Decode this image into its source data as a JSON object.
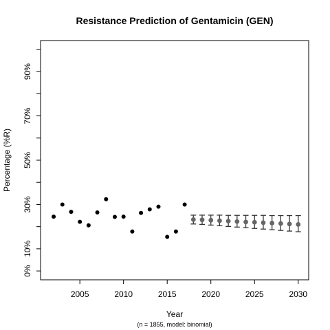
{
  "chart_data": {
    "type": "scatter",
    "title": "Resistance Prediction of Gentamicin (GEN)",
    "xlabel": "Year",
    "ylabel": "Percentage (%R)",
    "caption": "(n = 1855, model: binomial)",
    "xlim": [
      2000.5,
      2031.2
    ],
    "ylim": [
      -0.04,
      1.04
    ],
    "x_ticks": [
      2005,
      2010,
      2015,
      2020,
      2025,
      2030
    ],
    "y_ticks": [
      0,
      0.1,
      0.3,
      0.5,
      0.7,
      0.9
    ],
    "y_tick_labels": [
      "0%",
      "10%",
      "30%",
      "50%",
      "70%",
      "90%"
    ],
    "y_minor_ticks": [
      0.2,
      0.4,
      0.6,
      0.8,
      1.0
    ],
    "colors": {
      "observed": "#000000",
      "predicted": "#666666",
      "error_bar": "#333333"
    },
    "observed": {
      "x": [
        2002,
        2003,
        2004,
        2005,
        2006,
        2007,
        2008,
        2009,
        2010,
        2011,
        2012,
        2013,
        2014,
        2015,
        2016,
        2017
      ],
      "y": [
        0.245,
        0.3,
        0.267,
        0.222,
        0.206,
        0.264,
        0.324,
        0.244,
        0.245,
        0.178,
        0.262,
        0.278,
        0.29,
        0.154,
        0.178,
        0.3
      ]
    },
    "predicted": {
      "x": [
        2018,
        2019,
        2020,
        2021,
        2022,
        2023,
        2024,
        2025,
        2026,
        2027,
        2028,
        2029,
        2030
      ],
      "y": [
        0.232,
        0.231,
        0.229,
        0.227,
        0.225,
        0.223,
        0.221,
        0.22,
        0.218,
        0.216,
        0.214,
        0.212,
        0.21
      ],
      "lower": [
        0.212,
        0.21,
        0.207,
        0.204,
        0.201,
        0.198,
        0.195,
        0.192,
        0.189,
        0.186,
        0.183,
        0.18,
        0.177
      ],
      "upper": [
        0.252,
        0.252,
        0.252,
        0.252,
        0.251,
        0.251,
        0.251,
        0.251,
        0.251,
        0.25,
        0.25,
        0.25,
        0.25
      ]
    },
    "grid": false,
    "legend": "none"
  }
}
